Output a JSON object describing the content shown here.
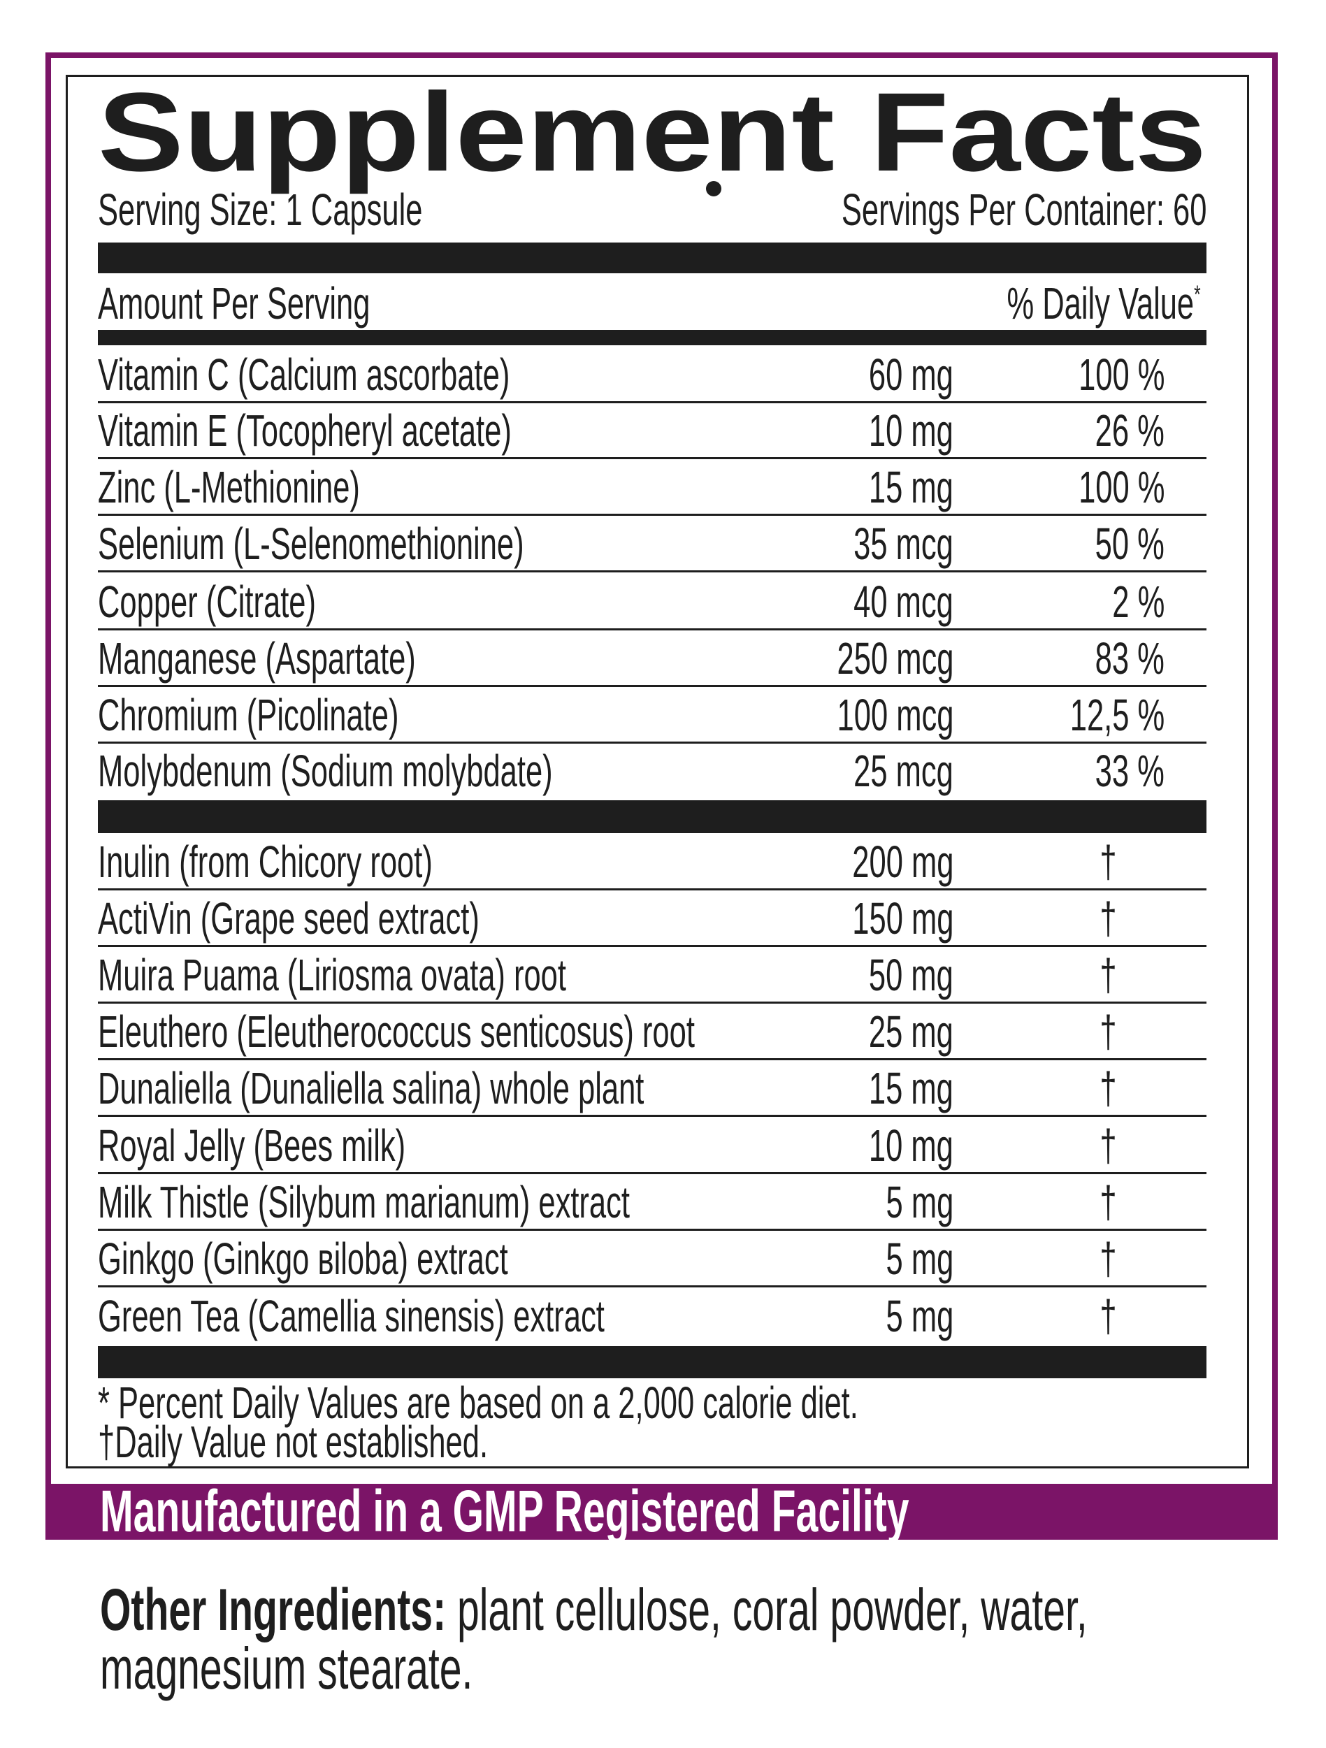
{
  "title": "Supplement Facts",
  "serving_size": "Serving Size: 1 Capsule",
  "servings_per_container": "Servings Per Container: 60",
  "amount_per_serving": "Amount Per Serving",
  "daily_value_header": "% Daily Value",
  "daily_value_header_mark": "*",
  "vitamins": [
    {
      "name": "Vitamin C (Calcium ascorbate)",
      "amount": "60 mg",
      "dv": "100 %"
    },
    {
      "name": "Vitamin E (Tocopheryl acetate)",
      "amount": "10 mg",
      "dv": "26 %"
    },
    {
      "name": "Zinc (L-Methionine)",
      "amount": "15 mg",
      "dv": "100 %"
    },
    {
      "name": "Selenium (L-Selenomethionine)",
      "amount": "35 mcg",
      "dv": "50 %"
    },
    {
      "name": "Copper (Citrate)",
      "amount": "40 mcg",
      "dv": "2 %"
    },
    {
      "name": "Manganese (Aspartate)",
      "amount": "250 mcg",
      "dv": "83 %"
    },
    {
      "name": "Chromium (Picolinate)",
      "amount": "100 mcg",
      "dv": "12,5 %"
    },
    {
      "name": "Molybdenum (Sodium molybdate)",
      "amount": "25 mcg",
      "dv": "33 %"
    }
  ],
  "botanicals": [
    {
      "name": "Inulin (from Chicory root)",
      "amount": "200 mg",
      "dv": "†"
    },
    {
      "name": "ActiVin (Grape seed extract)",
      "amount": "150 mg",
      "dv": "†"
    },
    {
      "name": "Muira Puama (Liriosma ovata) root",
      "amount": "50 mg",
      "dv": "†"
    },
    {
      "name": "Eleuthero (Eleutherococcus senticosus) root",
      "amount": "25 mg",
      "dv": "†"
    },
    {
      "name": "Dunaliella (Dunaliella salina) whole plant",
      "amount": "15 mg",
      "dv": "†"
    },
    {
      "name": "Royal Jelly (Bees milk)",
      "amount": "10 mg",
      "dv": "†"
    },
    {
      "name": "Milk Thistle (Silybum marianum) extract",
      "amount": "5 mg",
      "dv": "†"
    },
    {
      "name": "Ginkgo (Ginkgo вiloba) extract",
      "amount": "5 mg",
      "dv": "†"
    },
    {
      "name": "Green Tea (Camellia sinensis) extract",
      "amount": "5 mg",
      "dv": "†"
    }
  ],
  "footnotes": [
    "* Percent Daily Values are based on a 2,000 calorie diet.",
    "†Daily Value not established."
  ],
  "facility_banner": "Manufactured in a GMP Registered Facility",
  "other_ingredients": {
    "label": "Other Ingredients:",
    "line1": " plant cellulose, coral powder, water,",
    "line2": "magnesium stearate."
  },
  "colors": {
    "brand_purple": "#7b1467",
    "text": "#1e1e1e"
  }
}
